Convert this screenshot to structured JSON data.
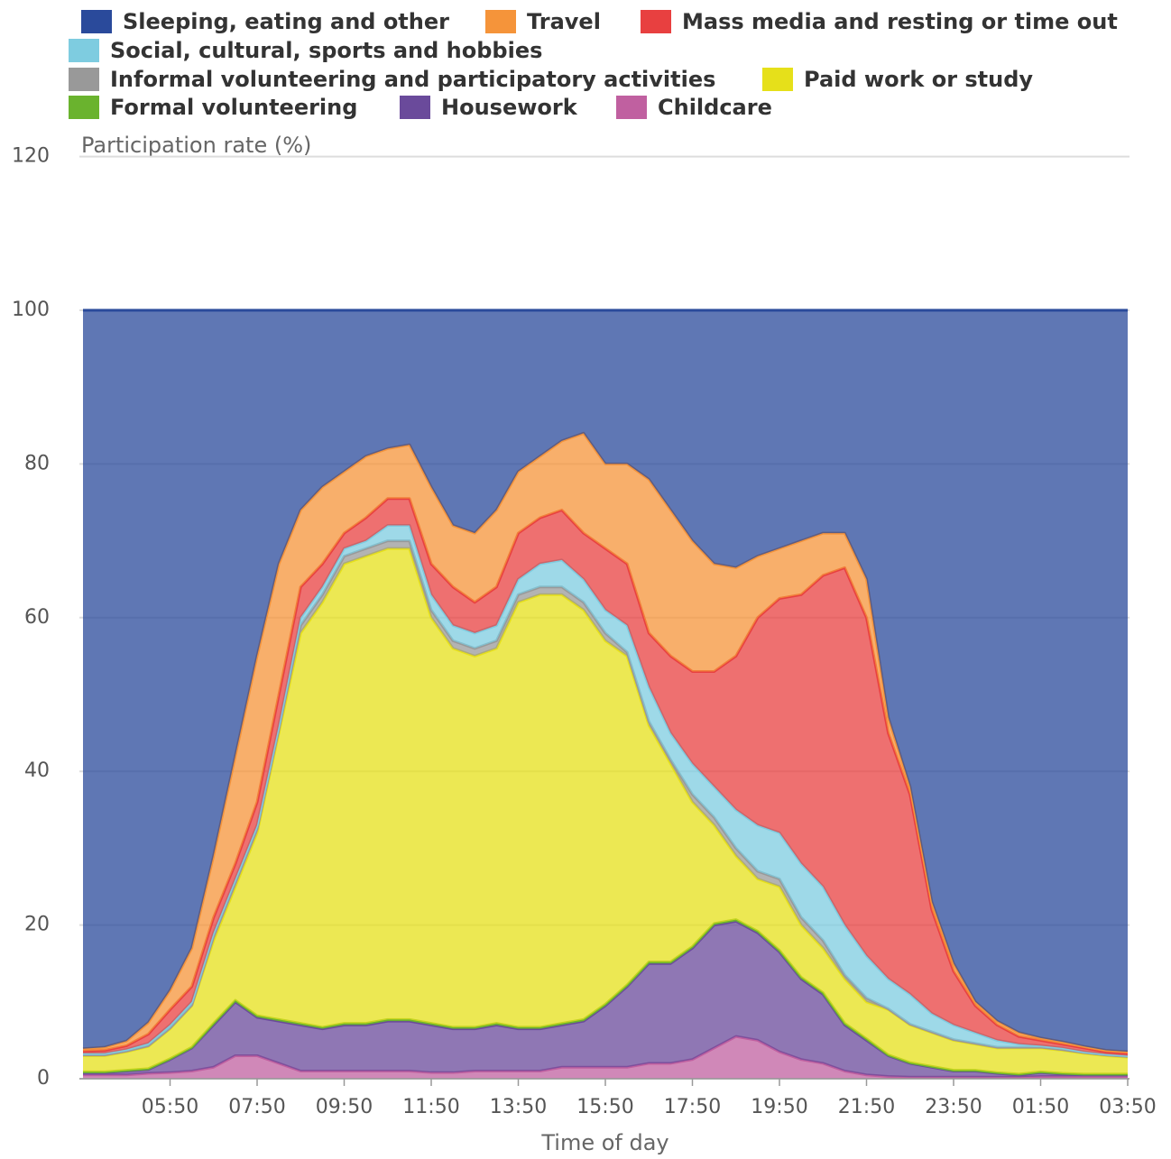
{
  "chart_data": {
    "type": "stacked-area",
    "y_label": "Participation rate (%)",
    "x_label": "Time of day",
    "categories": [
      null,
      null,
      null,
      null,
      "05:50",
      null,
      null,
      null,
      "07:50",
      null,
      null,
      null,
      "09:50",
      null,
      null,
      null,
      "11:50",
      null,
      null,
      null,
      "13:50",
      null,
      null,
      null,
      "15:50",
      null,
      null,
      null,
      "17:50",
      null,
      null,
      null,
      "19:50",
      null,
      null,
      null,
      "21:50",
      null,
      null,
      null,
      "23:50",
      null,
      null,
      null,
      "01:50",
      null,
      null,
      null,
      "03:50"
    ],
    "ylim": [
      0,
      120
    ],
    "yticks": [
      0,
      20,
      40,
      60,
      80,
      100,
      120
    ],
    "grid": true,
    "series": [
      {
        "name": "Sleeping, eating and other",
        "color": "#2a4a9b",
        "values": [
          96.1,
          95.9,
          95.1,
          92.7,
          88.5,
          83,
          71,
          58,
          45,
          33,
          26,
          23,
          21,
          19,
          18,
          17.5,
          23,
          28,
          29,
          26,
          21,
          19,
          17,
          16,
          20,
          20,
          22,
          26,
          30,
          33,
          33.5,
          32,
          31,
          30,
          29,
          29,
          35,
          53,
          62,
          77,
          85,
          90,
          92.5,
          94,
          94.7,
          95.2,
          95.8,
          96.3,
          96.5
        ]
      },
      {
        "name": "Travel",
        "color": "#f5943a",
        "values": [
          0.3,
          0.4,
          0.6,
          1.5,
          2.5,
          5,
          8,
          14,
          19,
          17,
          10,
          10,
          8,
          8,
          6.5,
          7,
          10,
          8,
          9,
          10,
          8,
          8,
          9,
          13,
          11,
          13,
          20,
          19,
          17,
          14,
          11.5,
          8,
          6.5,
          7,
          5.5,
          4.5,
          5,
          2,
          1,
          1,
          1,
          0.5,
          0.5,
          0.5,
          0.3,
          0.3,
          0.2,
          0.2,
          0.2
        ]
      },
      {
        "name": "Mass media and resting or time out",
        "color": "#e84040",
        "values": [
          0.3,
          0.4,
          0.5,
          1.2,
          2,
          2,
          2,
          2,
          3,
          4,
          4,
          3,
          2,
          3,
          3.5,
          3.5,
          4,
          5,
          4,
          5,
          6,
          6,
          6.5,
          6,
          8,
          8,
          7,
          10,
          12,
          15,
          20,
          27,
          30.5,
          35,
          40.5,
          46.5,
          44,
          32,
          26,
          13.5,
          7,
          3.5,
          2,
          1,
          0.7,
          0.5,
          0.5,
          0.3,
          0.3
        ]
      },
      {
        "name": "Social, cultural, sports and hobbies",
        "color": "#7ecce0",
        "values": [
          0.2,
          0.2,
          0.2,
          0.3,
          0.4,
          0.4,
          0.5,
          0.5,
          0.5,
          0.5,
          1,
          1,
          1,
          1,
          2,
          2,
          2,
          2,
          2,
          2,
          2,
          3,
          3.5,
          3,
          3,
          3.5,
          4.5,
          3.5,
          4,
          4,
          5,
          6,
          6,
          7,
          7,
          6.5,
          5.5,
          3.9,
          3.9,
          2.4,
          1.9,
          1.4,
          0.9,
          0.4,
          0.2,
          0.2,
          0.1,
          0.1,
          0.1
        ]
      },
      {
        "name": "Informal volunteering and participatory activities",
        "color": "#999999",
        "values": [
          0.1,
          0.1,
          0.1,
          0.1,
          0.1,
          0.1,
          0.5,
          0.5,
          0.5,
          0.5,
          1,
          1,
          1,
          1,
          1,
          1,
          1,
          1,
          1,
          1,
          1,
          1,
          1,
          1,
          1,
          0.5,
          0.5,
          0.5,
          1,
          1,
          1,
          1,
          1,
          1,
          1,
          0.5,
          0.5,
          0.1,
          0.1,
          0.1,
          0.1,
          0.1,
          0.1,
          0.1,
          0.1,
          0.1,
          0.1,
          0.1,
          0.1
        ]
      },
      {
        "name": "Paid work or study",
        "color": "#e6e01a",
        "values": [
          2.1,
          2.1,
          2.4,
          2.9,
          3.9,
          5.4,
          10.8,
          14.8,
          23.8,
          37.3,
          50.8,
          55.3,
          59.8,
          60.8,
          61.3,
          61.3,
          52.8,
          49.3,
          48.3,
          48.8,
          55.3,
          56.3,
          55.8,
          53.3,
          47.3,
          42.8,
          30.8,
          25.8,
          18.8,
          12.8,
          8.3,
          6.8,
          8.3,
          6.8,
          5.8,
          5.8,
          4.8,
          5.9,
          4.9,
          4.4,
          3.9,
          3.4,
          3.2,
          3.4,
          3.1,
          3,
          2.7,
          2.4,
          2.2
        ]
      },
      {
        "name": "Formal volunteering",
        "color": "#6ab32e",
        "values": [
          0.1,
          0.1,
          0.1,
          0.1,
          0.1,
          0.1,
          0.2,
          0.2,
          0.2,
          0.2,
          0.2,
          0.2,
          0.2,
          0.2,
          0.2,
          0.2,
          0.2,
          0.2,
          0.2,
          0.2,
          0.2,
          0.2,
          0.2,
          0.2,
          0.2,
          0.2,
          0.2,
          0.2,
          0.2,
          0.2,
          0.2,
          0.2,
          0.2,
          0.2,
          0.2,
          0.2,
          0.2,
          0.1,
          0.1,
          0.1,
          0.1,
          0.1,
          0.1,
          0.1,
          0.1,
          0.1,
          0.1,
          0.1,
          0.1
        ]
      },
      {
        "name": "Housework",
        "color": "#6a4a9b",
        "values": [
          0.3,
          0.3,
          0.5,
          0.5,
          1.7,
          3,
          5.5,
          7,
          5,
          5.5,
          6,
          5.5,
          6,
          6,
          6.5,
          6.5,
          6.2,
          5.7,
          5.5,
          6,
          5.5,
          5.5,
          5.5,
          6,
          8,
          10.5,
          13,
          13,
          14.5,
          16,
          15,
          14,
          13,
          10.5,
          9,
          6,
          4.5,
          2.7,
          1.8,
          1.3,
          0.8,
          0.8,
          0.5,
          0.3,
          0.5,
          0.3,
          0.2,
          0.2,
          0.2
        ]
      },
      {
        "name": "Childcare",
        "color": "#c060a0",
        "values": [
          0.5,
          0.5,
          0.5,
          0.7,
          0.8,
          1,
          1.5,
          3,
          3,
          2,
          1,
          1,
          1,
          1,
          1,
          1,
          0.8,
          0.8,
          1,
          1,
          1,
          1,
          1.5,
          1.5,
          1.5,
          1.5,
          2,
          2,
          2.5,
          4,
          5.5,
          5,
          3.5,
          2.5,
          2,
          1,
          0.5,
          0.3,
          0.2,
          0.2,
          0.2,
          0.2,
          0.2,
          0.2,
          0.3,
          0.3,
          0.3,
          0.3,
          0.3
        ]
      }
    ]
  }
}
